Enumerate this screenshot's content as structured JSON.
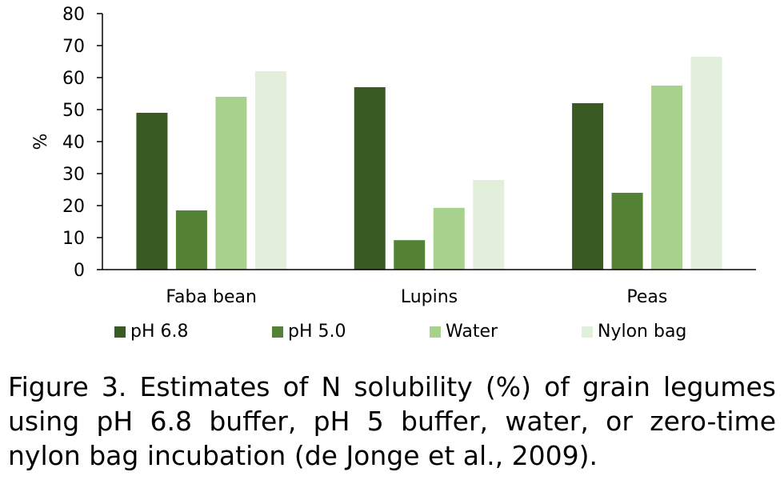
{
  "chart_data": {
    "type": "bar",
    "title": "",
    "xlabel": "",
    "ylabel": "%",
    "ylim": [
      0,
      80
    ],
    "yticks": [
      0,
      10,
      20,
      30,
      40,
      50,
      60,
      70,
      80
    ],
    "grid": false,
    "legend_position": "bottom",
    "categories": [
      "Faba bean",
      "Lupins",
      "Peas"
    ],
    "series": [
      {
        "name": "pH 6.8",
        "color": "#3a5a24",
        "values": [
          49,
          57,
          52
        ]
      },
      {
        "name": "pH 5.0",
        "color": "#548235",
        "values": [
          18.5,
          9.2,
          24
        ]
      },
      {
        "name": "Water",
        "color": "#a9d18e",
        "values": [
          54,
          19.3,
          57.5
        ]
      },
      {
        "name": "Nylon bag",
        "color": "#e2efda",
        "values": [
          62,
          28,
          66.5
        ]
      }
    ]
  },
  "caption": "Figure 3. Estimates of N solubility (%) of grain legumes using pH 6.8 buffer, pH 5 buffer, water, or zero-time nylon bag incubation (de Jonge et al., 2009)."
}
